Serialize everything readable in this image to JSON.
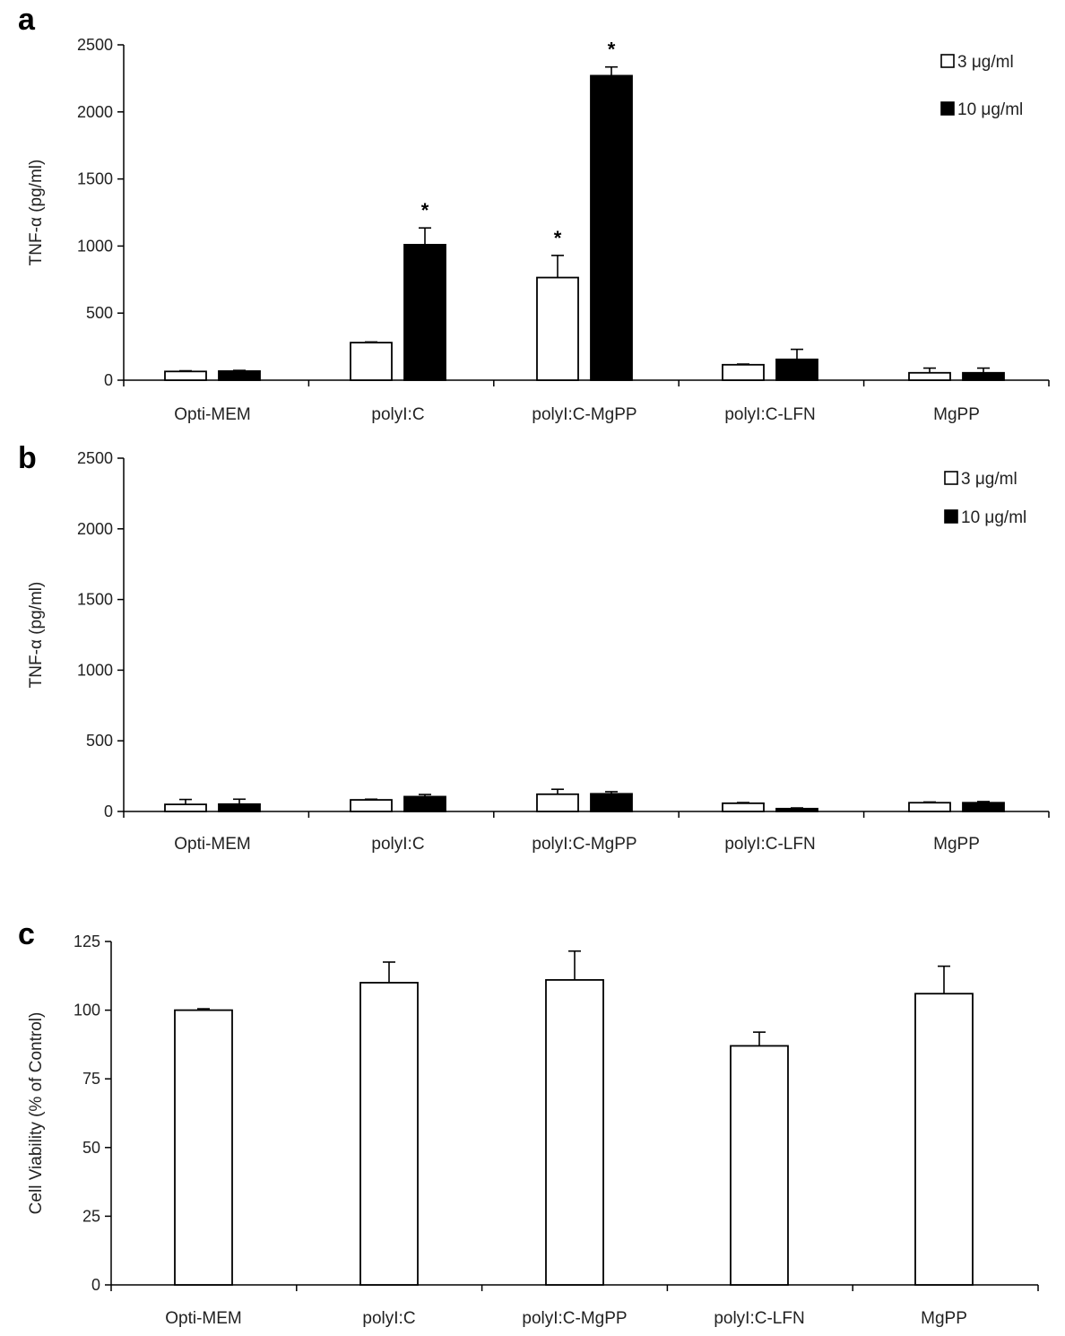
{
  "chart_data": [
    {
      "panel": "a",
      "type": "bar",
      "categories": [
        "Opti-MEM",
        "polyI:C",
        "polyI:C-MgPP",
        "polyI:C-LFN",
        "MgPP"
      ],
      "ylabel": "TNF-α (pg/ml)",
      "ylim": [
        0,
        2500
      ],
      "yticks": [
        0,
        500,
        1000,
        1500,
        2000,
        2500
      ],
      "grid": false,
      "legend_position": "top-right",
      "series": [
        {
          "name": "3 μg/ml",
          "color": "#ffffff",
          "values": [
            65,
            280,
            765,
            115,
            55
          ],
          "errors": [
            5,
            5,
            165,
            5,
            35
          ],
          "significance": [
            "",
            "",
            "*",
            "",
            ""
          ]
        },
        {
          "name": "10 μg/ml",
          "color": "#000000",
          "values": [
            68,
            1010,
            2270,
            155,
            55
          ],
          "errors": [
            5,
            125,
            65,
            75,
            35
          ],
          "significance": [
            "",
            "*",
            "*",
            "",
            ""
          ]
        }
      ]
    },
    {
      "panel": "b",
      "type": "bar",
      "categories": [
        "Opti-MEM",
        "polyI:C",
        "polyI:C-MgPP",
        "polyI:C-LFN",
        "MgPP"
      ],
      "ylabel": "TNF-α (pg/ml)",
      "ylim": [
        0,
        2500
      ],
      "yticks": [
        0,
        500,
        1000,
        1500,
        2000,
        2500
      ],
      "grid": false,
      "legend_position": "top-right",
      "series": [
        {
          "name": "3 μg/ml",
          "color": "#ffffff",
          "values": [
            50,
            82,
            122,
            58,
            62
          ],
          "errors": [
            35,
            5,
            35,
            5,
            5
          ],
          "significance": [
            "",
            "",
            "",
            "",
            ""
          ]
        },
        {
          "name": "10 μg/ml",
          "color": "#000000",
          "values": [
            52,
            105,
            125,
            20,
            62
          ],
          "errors": [
            35,
            15,
            15,
            5,
            8
          ],
          "significance": [
            "",
            "",
            "",
            "",
            ""
          ]
        }
      ]
    },
    {
      "panel": "c",
      "type": "bar",
      "categories": [
        "Opti-MEM",
        "polyI:C",
        "polyI:C-MgPP",
        "polyI:C-LFN",
        "MgPP"
      ],
      "ylabel": "Cell Viability (% of Control)",
      "ylim": [
        0,
        125
      ],
      "yticks": [
        0,
        25,
        50,
        75,
        100,
        125
      ],
      "grid": false,
      "series": [
        {
          "name": "",
          "color": "#ffffff",
          "values": [
            100,
            110,
            111,
            87,
            106
          ],
          "errors": [
            0.5,
            7.5,
            10.5,
            5,
            10
          ],
          "significance": [
            "",
            "",
            "",
            "",
            ""
          ]
        }
      ]
    }
  ]
}
